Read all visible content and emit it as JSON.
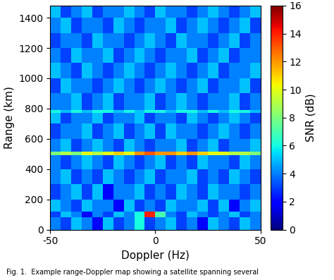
{
  "chart_data": {
    "type": "heatmap",
    "xlabel": "Doppler (Hz)",
    "ylabel": "Range (km)",
    "caption": "Fig. 1.  Example range-Doppler map showing a satellite spanning several",
    "color": "jet",
    "xlim": [
      -50,
      50
    ],
    "xticks": [
      -50,
      0,
      50
    ],
    "ylim": [
      0,
      1480
    ],
    "yticks": [
      0,
      200,
      400,
      600,
      800,
      1000,
      1200,
      1400
    ],
    "x_edges": [
      -50,
      -45,
      -40,
      -35,
      -30,
      -25,
      -20,
      -15,
      -10,
      -5,
      0,
      5,
      10,
      15,
      20,
      25,
      30,
      35,
      40,
      45,
      50
    ],
    "y_edges": [
      0,
      80,
      120,
      200,
      300,
      400,
      490,
      515,
      600,
      700,
      770,
      790,
      900,
      1000,
      1100,
      1200,
      1300,
      1400,
      1480
    ],
    "cells": [
      [
        4,
        3,
        5,
        4,
        2,
        5,
        3,
        4,
        6,
        3,
        4,
        5,
        3,
        4,
        2,
        5,
        4,
        3,
        5,
        4
      ],
      [
        3,
        5,
        4,
        2,
        4,
        3,
        5,
        4,
        6,
        14,
        7,
        4,
        3,
        5,
        4,
        3,
        4,
        5,
        3,
        4
      ],
      [
        5,
        4,
        3,
        5,
        4,
        4,
        2,
        5,
        3,
        4,
        3,
        5,
        4,
        4,
        5,
        3,
        5,
        2,
        4,
        5
      ],
      [
        3,
        4,
        5,
        3,
        5,
        2,
        4,
        4,
        5,
        3,
        4,
        3,
        5,
        4,
        3,
        5,
        4,
        4,
        3,
        4
      ],
      [
        4,
        5,
        3,
        4,
        3,
        5,
        4,
        3,
        4,
        5,
        3,
        4,
        4,
        5,
        3,
        4,
        3,
        5,
        4,
        3
      ],
      [
        4,
        3,
        4,
        5,
        4,
        3,
        5,
        4,
        3,
        4,
        5,
        3,
        4,
        3,
        5,
        4,
        4,
        3,
        5,
        4
      ],
      [
        8,
        9,
        8,
        10,
        9,
        10,
        11,
        10,
        12,
        13,
        12,
        12,
        11,
        12,
        11,
        10,
        10,
        9,
        9,
        8
      ],
      [
        4,
        5,
        3,
        4,
        5,
        4,
        3,
        5,
        4,
        3,
        4,
        4,
        5,
        3,
        4,
        5,
        3,
        4,
        4,
        5
      ],
      [
        3,
        4,
        4,
        5,
        3,
        4,
        5,
        3,
        4,
        5,
        3,
        5,
        4,
        4,
        3,
        4,
        5,
        4,
        3,
        4
      ],
      [
        5,
        3,
        4,
        4,
        5,
        3,
        4,
        4,
        5,
        3,
        4,
        4,
        3,
        5,
        4,
        3,
        4,
        5,
        4,
        3
      ],
      [
        6,
        5,
        6,
        5,
        6,
        6,
        5,
        6,
        5,
        6,
        6,
        5,
        6,
        6,
        5,
        6,
        5,
        6,
        6,
        5
      ],
      [
        4,
        4,
        5,
        3,
        4,
        5,
        3,
        4,
        4,
        5,
        3,
        4,
        5,
        4,
        3,
        4,
        4,
        5,
        3,
        4
      ],
      [
        3,
        5,
        4,
        4,
        3,
        4,
        5,
        4,
        3,
        4,
        5,
        4,
        3,
        4,
        5,
        3,
        4,
        4,
        5,
        3
      ],
      [
        5,
        4,
        3,
        5,
        4,
        3,
        4,
        5,
        4,
        3,
        4,
        5,
        4,
        3,
        4,
        5,
        3,
        4,
        4,
        5
      ],
      [
        4,
        3,
        5,
        4,
        4,
        5,
        3,
        4,
        5,
        4,
        3,
        4,
        4,
        5,
        3,
        4,
        5,
        3,
        4,
        4
      ],
      [
        3,
        4,
        4,
        3,
        5,
        4,
        4,
        3,
        4,
        5,
        4,
        3,
        5,
        4,
        4,
        3,
        4,
        5,
        3,
        4
      ],
      [
        4,
        5,
        3,
        4,
        4,
        3,
        5,
        4,
        3,
        4,
        4,
        5,
        3,
        4,
        5,
        4,
        3,
        4,
        5,
        3
      ],
      [
        5,
        3,
        4,
        5,
        3,
        4,
        4,
        5,
        4,
        3,
        5,
        4,
        4,
        3,
        4,
        5,
        4,
        3,
        4,
        5
      ]
    ],
    "colorbar": {
      "label": "SNR (dB)",
      "range": [
        0,
        16
      ],
      "ticks": [
        0,
        2,
        4,
        6,
        8,
        10,
        12,
        14,
        16
      ]
    }
  }
}
